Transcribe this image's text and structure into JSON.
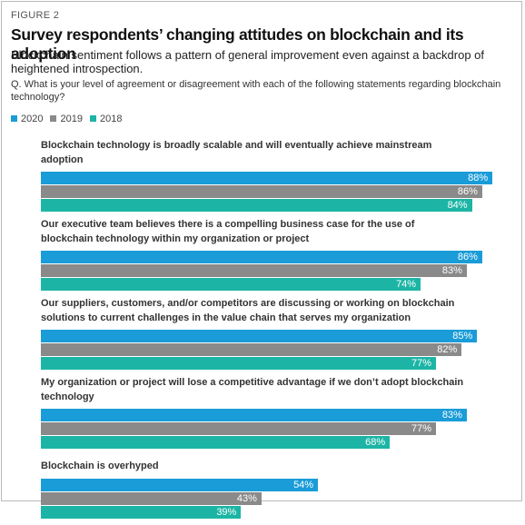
{
  "chart_data": {
    "type": "bar",
    "orientation": "horizontal",
    "figure_label": "FIGURE 2",
    "title": "Survey respondents’ changing attitudes on blockchain and its adoption",
    "subtitle": "Blockchain sentiment follows a pattern of general improvement even against a backdrop of heightened introspection.",
    "question": "Q. What is your level of agreement or disagreement with each of the following statements regarding blockchain technology?",
    "categories": [
      "Blockchain technology is broadly scalable and will eventually achieve mainstream adoption",
      "Our executive team believes there is a compelling business case for the use of blockchain technology within my organization or project",
      "Our suppliers, customers, and/or competitors are discussing or working on blockchain solutions to current challenges in the value chain that serves my organization",
      "My organization or project will lose a competitive advantage if we don’t adopt blockchain technology",
      "Blockchain is overhyped"
    ],
    "series": [
      {
        "name": "2020",
        "color": "#1a9cd8",
        "values": [
          88,
          86,
          85,
          83,
          54
        ],
        "value_labels": [
          "88%",
          "86%",
          "85%",
          "83%",
          "54%"
        ]
      },
      {
        "name": "2019",
        "color": "#8a8a8a",
        "values": [
          86,
          83,
          82,
          77,
          43
        ],
        "value_labels": [
          "86%",
          "83%",
          "82%",
          "77%",
          "43%"
        ]
      },
      {
        "name": "2018",
        "color": "#1cb5a5",
        "values": [
          84,
          74,
          77,
          68,
          39
        ],
        "value_labels": [
          "84%",
          "74%",
          "77%",
          "68%",
          "39%"
        ]
      }
    ]
  }
}
